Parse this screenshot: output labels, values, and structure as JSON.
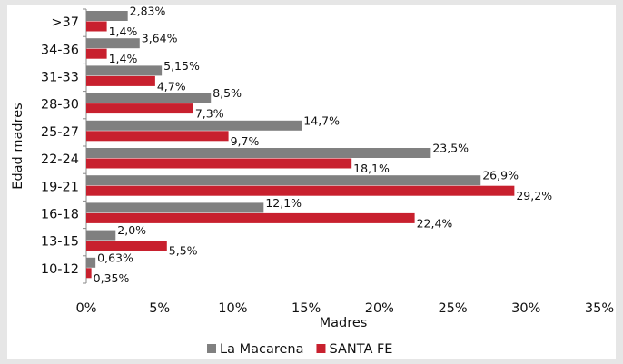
{
  "chart_data": {
    "type": "hbar",
    "categories": [
      ">37",
      "34-36",
      "31-33",
      "28-30",
      "25-27",
      "22-24",
      "19-21",
      "16-18",
      "13-15",
      "10-12"
    ],
    "series": [
      {
        "name": "La Macarena",
        "color": "#808080",
        "values": [
          2.83,
          3.64,
          5.15,
          8.5,
          14.7,
          23.5,
          26.9,
          12.1,
          2.0,
          0.63
        ],
        "value_labels": [
          "2,83%",
          "3,64%",
          "5,15%",
          "8,5%",
          "14,7%",
          "23,5%",
          "26,9%",
          "12,1%",
          "2,0%",
          "0,63%"
        ]
      },
      {
        "name": "SANTA FE",
        "color": "#c8202e",
        "values": [
          1.4,
          1.4,
          4.7,
          7.3,
          9.7,
          18.1,
          29.2,
          22.4,
          5.5,
          0.35
        ],
        "value_labels": [
          "1,4%",
          "1,4%",
          "4,7%",
          "7,3%",
          "9,7%",
          "18,1%",
          "29,2%",
          "22,4%",
          "5,5%",
          "0,35%"
        ]
      }
    ],
    "xlim": [
      0,
      35
    ],
    "xticks": [
      {
        "value": 0,
        "label": "0%"
      },
      {
        "value": 5,
        "label": "5%"
      },
      {
        "value": 10,
        "label": "10%"
      },
      {
        "value": 15,
        "label": "15%"
      },
      {
        "value": 20,
        "label": "20%"
      },
      {
        "value": 25,
        "label": "25%"
      },
      {
        "value": 30,
        "label": "30%"
      },
      {
        "value": 35,
        "label": "35%"
      }
    ],
    "x_label": "Madres",
    "y_label": "Edad madres",
    "legend": "bottom"
  }
}
